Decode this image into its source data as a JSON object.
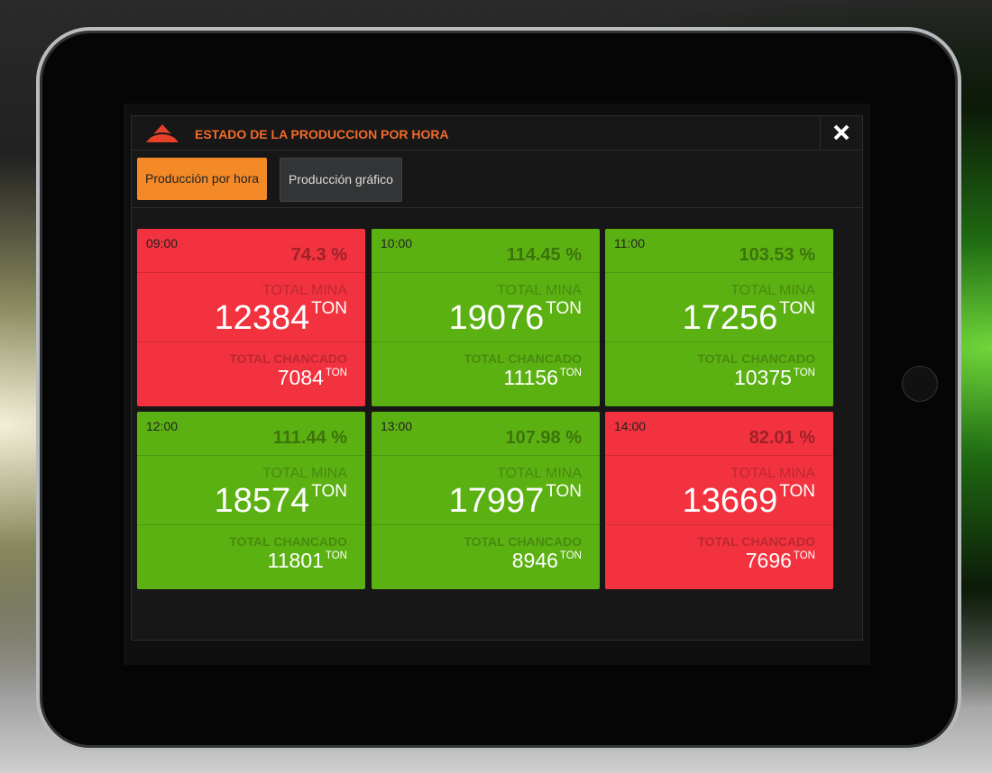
{
  "header": {
    "title": "ESTADO DE LA PRODUCCION POR HORA"
  },
  "tabs": [
    "Producción por hora",
    "Producción gráfico"
  ],
  "labels": {
    "mina": "TOTAL MINA",
    "chancado": "TOTAL CHANCADO",
    "unit": "TON"
  },
  "cards": [
    {
      "time": "09:00",
      "percent": "74.3 %",
      "mina": 12384,
      "chancado": 7084,
      "color": "#f2333f"
    },
    {
      "time": "10:00",
      "percent": "114.45 %",
      "mina": 19076,
      "chancado": 11156,
      "color": "#5cb112"
    },
    {
      "time": "11:00",
      "percent": "103.53 %",
      "mina": 17256,
      "chancado": 10375,
      "color": "#5cb112"
    },
    {
      "time": "12:00",
      "percent": "111.44 %",
      "mina": 18574,
      "chancado": 11801,
      "color": "#5cb112"
    },
    {
      "time": "13:00",
      "percent": "107.98 %",
      "mina": 17997,
      "chancado": 8946,
      "color": "#5cb112"
    },
    {
      "time": "14:00",
      "percent": "82.01 %",
      "mina": 13669,
      "chancado": 7696,
      "color": "#f2333f"
    }
  ]
}
